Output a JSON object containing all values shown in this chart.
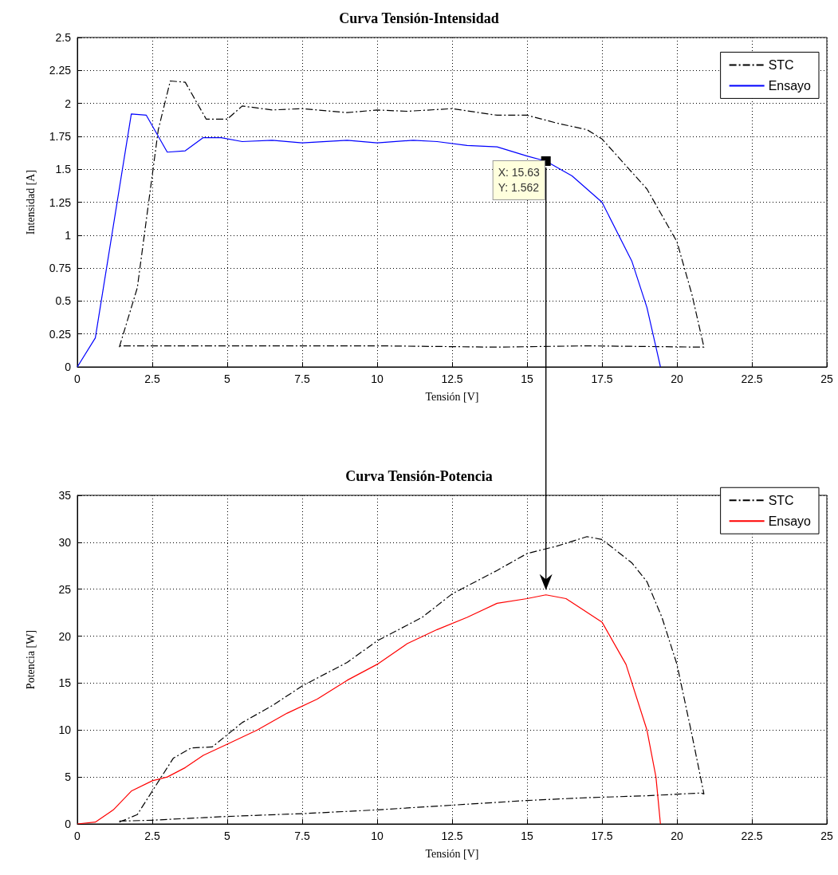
{
  "chart_data": [
    {
      "type": "line",
      "title": "Curva Tensión-Intensidad",
      "xlabel": "Tensión [V]",
      "ylabel": "Intensidad [A]",
      "xlim": [
        0,
        25
      ],
      "xticks": [
        0,
        2.5,
        5,
        7.5,
        10,
        12.5,
        15,
        17.5,
        20,
        22.5,
        25
      ],
      "ylim": [
        0,
        2.5
      ],
      "yticks": [
        0,
        0.25,
        0.5,
        0.75,
        1,
        1.25,
        1.5,
        1.75,
        2,
        2.25,
        2.5
      ],
      "grid": true,
      "legend": "top right",
      "marker": "none",
      "annotations": [
        {
          "text": "X: 15.63\nY: 1.562",
          "x": 15.63,
          "y": 1.562
        }
      ],
      "series": [
        {
          "name": "STC",
          "color": "#000000",
          "line_style": "dashed",
          "x": [
            1.4,
            2,
            2.7,
            3.1,
            3.6,
            4.3,
            5,
            5.5,
            6.5,
            7.5,
            9,
            10,
            11,
            12.5,
            14,
            15,
            16,
            17,
            17.5,
            19,
            20,
            20.5,
            20.9,
            20.8,
            17,
            14,
            10,
            7,
            4,
            1.4
          ],
          "values": [
            0.15,
            0.6,
            1.8,
            2.17,
            2.16,
            1.88,
            1.88,
            1.98,
            1.95,
            1.96,
            1.93,
            1.95,
            1.94,
            1.96,
            1.91,
            1.91,
            1.85,
            1.8,
            1.73,
            1.35,
            0.95,
            0.55,
            0.15,
            0.15,
            0.16,
            0.15,
            0.16,
            0.16,
            0.16,
            0.16
          ]
        },
        {
          "name": "Ensayo",
          "color": "#0000ff",
          "line_style": "solid",
          "x": [
            0,
            0.6,
            1.8,
            2.3,
            3,
            3.6,
            4.2,
            4.8,
            5.5,
            6.5,
            7.5,
            9,
            10,
            11.2,
            12,
            13,
            14,
            15,
            15.63,
            16.5,
            17.5,
            18.5,
            19,
            19.3,
            19.45
          ],
          "values": [
            0,
            0.22,
            1.92,
            1.91,
            1.63,
            1.64,
            1.74,
            1.74,
            1.71,
            1.72,
            1.7,
            1.72,
            1.7,
            1.72,
            1.71,
            1.68,
            1.67,
            1.6,
            1.562,
            1.45,
            1.25,
            0.8,
            0.45,
            0.15,
            0
          ]
        }
      ]
    },
    {
      "type": "line",
      "title": "Curva Tensión-Potencia",
      "xlabel": "Tensión [V]",
      "ylabel": "Potencia [W]",
      "xlim": [
        0,
        25
      ],
      "xticks": [
        0,
        2.5,
        5,
        7.5,
        10,
        12.5,
        15,
        17.5,
        20,
        22.5,
        25
      ],
      "ylim": [
        0,
        35
      ],
      "yticks": [
        0,
        5,
        10,
        15,
        20,
        25,
        30,
        35
      ],
      "grid": true,
      "legend": "top right",
      "marker": "none",
      "series": [
        {
          "name": "STC",
          "color": "#000000",
          "line_style": "dashed",
          "x": [
            1.4,
            2,
            2.5,
            3.2,
            3.8,
            4.5,
            5.5,
            6.5,
            7.5,
            9,
            10,
            11.5,
            12.5,
            14,
            15,
            16,
            17,
            17.5,
            18.5,
            19,
            19.5,
            20,
            20.5,
            20.9,
            20.8,
            19,
            17,
            15,
            12.5,
            10,
            7.5,
            5,
            2.5,
            1.4
          ],
          "values": [
            0.2,
            1,
            3.5,
            7,
            8.1,
            8.2,
            10.8,
            12.6,
            14.7,
            17.2,
            19.5,
            22,
            24.5,
            27,
            28.8,
            29.6,
            30.6,
            30.3,
            27.8,
            25.8,
            22,
            17,
            9.5,
            3.2,
            3.3,
            3,
            2.8,
            2.5,
            2,
            1.5,
            1.1,
            0.8,
            0.4,
            0.3
          ]
        },
        {
          "name": "Ensayo",
          "color": "#ff0000",
          "line_style": "solid",
          "x": [
            0,
            0.6,
            1.2,
            1.8,
            2.5,
            3,
            3.6,
            4.2,
            5,
            6,
            7,
            8,
            9,
            10,
            11,
            12,
            13,
            14,
            15,
            15.63,
            16.3,
            17.5,
            18.3,
            19,
            19.3,
            19.45
          ],
          "values": [
            0,
            0.2,
            1.5,
            3.5,
            4.6,
            5,
            6,
            7.3,
            8.5,
            10,
            11.8,
            13.3,
            15.3,
            17,
            19.2,
            20.7,
            22,
            23.5,
            24,
            24.4,
            24,
            21.5,
            17,
            10,
            5,
            0
          ]
        }
      ]
    }
  ]
}
